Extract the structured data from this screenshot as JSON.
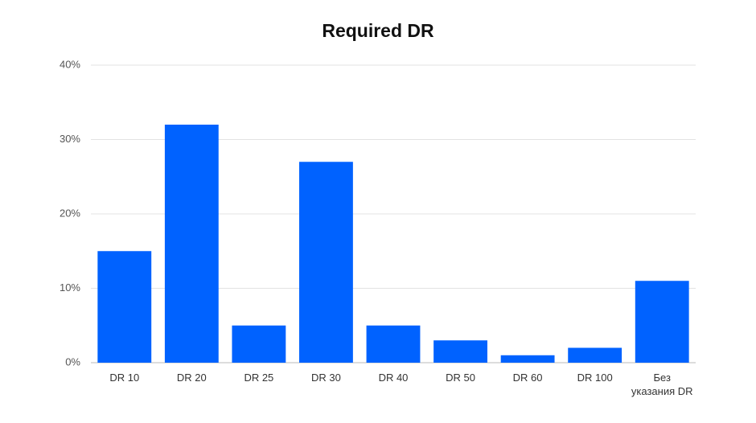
{
  "chart_data": {
    "type": "bar",
    "title": "Required DR",
    "categories": [
      "DR 10",
      "DR 20",
      "DR 25",
      "DR 30",
      "DR 40",
      "DR 50",
      "DR 60",
      "DR 100",
      "Без\nуказания DR"
    ],
    "values": [
      15,
      32,
      5,
      27,
      5,
      3,
      1,
      2,
      11
    ],
    "color": "#0062ff",
    "ylim": [
      0,
      40
    ],
    "yticks": [
      {
        "value": 0,
        "label": "0%"
      },
      {
        "value": 10,
        "label": "10%"
      },
      {
        "value": 20,
        "label": "20%"
      },
      {
        "value": 30,
        "label": "30%"
      },
      {
        "value": 40,
        "label": "40%"
      }
    ],
    "grid": true
  }
}
